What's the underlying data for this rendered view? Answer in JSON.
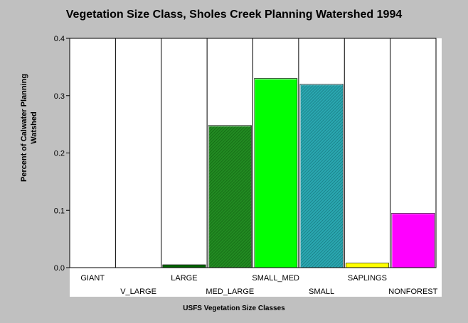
{
  "chart_data": {
    "type": "bar",
    "title": "Vegetation Size Class, Sholes Creek Planning Watershed 1994",
    "xlabel": "USFS Vegetation Size Classes",
    "ylabel_lines": [
      "Percent of Calwater Planning",
      "Watshed"
    ],
    "categories": [
      "GIANT",
      "V_LARGE",
      "LARGE",
      "MED_LARGE",
      "SMALL_MED",
      "SMALL",
      "SAPLINGS",
      "NONFOREST"
    ],
    "values": [
      0.0,
      0.0,
      0.005,
      0.248,
      0.33,
      0.32,
      0.008,
      0.095
    ],
    "ylim": [
      0,
      0.4
    ],
    "yticks": [
      "0.0",
      "0.1",
      "0.2",
      "0.3",
      "0.4"
    ],
    "ytick_values": [
      0,
      0.1,
      0.2,
      0.3,
      0.4
    ],
    "grid": "vertical",
    "legend": "none",
    "colors": [
      "#808080",
      "#808080",
      "#006400",
      "#228b22",
      "#00ff00",
      "#2aa7b0",
      "#ffff00",
      "#ff00ff"
    ],
    "hatched": [
      false,
      false,
      false,
      true,
      false,
      true,
      false,
      false
    ]
  }
}
